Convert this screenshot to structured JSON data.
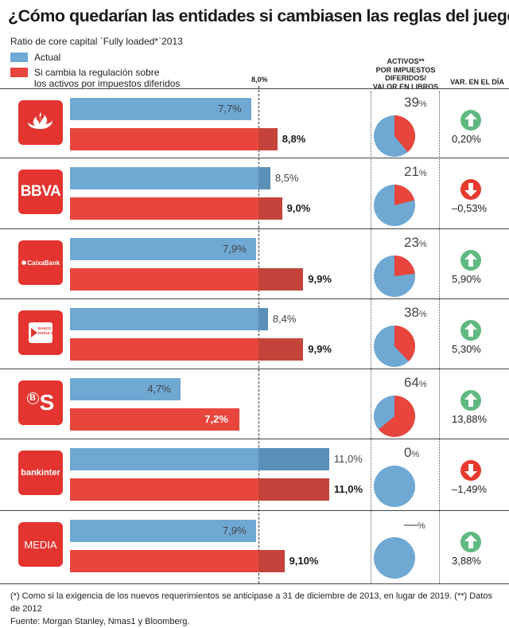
{
  "header": {
    "title": "¿Cómo quedarían las entidades si cambiasen las reglas del juego?",
    "subtitle": "Ratio de core capital `Fully loaded*`2013",
    "legend_actual": "Actual",
    "legend_new_line1": "Si cambia la regulación sobre",
    "legend_new_line2": "los activos por impuestos diferidos",
    "col_assets_line1": "ACTIVOS**",
    "col_assets_line2": "POR IMPUESTOS",
    "col_assets_line3": "DIFERIDOS/",
    "col_assets_line4": "VALOR EN LIBROS",
    "col_var": "VAR. EN EL DÍA",
    "ref_label": "8,0%"
  },
  "colors": {
    "actual": "#6fa8d3",
    "new": "#e8453c",
    "down": "#e63a2e",
    "up": "#5fb980"
  },
  "chart_data": {
    "type": "bar",
    "title": "¿Cómo quedarían las entidades si cambiasen las reglas del juego?",
    "subtitle": "Ratio de core capital `Fully loaded*`2013",
    "reference_line": 8.0,
    "categories": [
      "Santander",
      "BBVA",
      "CaixaBank",
      "Banco Popular",
      "Sabadell",
      "Bankinter",
      "MEDIA"
    ],
    "series": [
      {
        "name": "Actual",
        "values": [
          7.7,
          8.5,
          7.9,
          8.4,
          4.7,
          11.0,
          7.9
        ],
        "labels": [
          "7,7%",
          "8,5%",
          "7,9%",
          "8,4%",
          "4,7%",
          "11,0%",
          "7,9%"
        ]
      },
      {
        "name": "Si cambia la regulación sobre los activos por impuestos diferidos",
        "values": [
          8.8,
          9.0,
          9.9,
          9.9,
          7.2,
          11.0,
          9.1
        ],
        "labels": [
          "8,8%",
          "9,0%",
          "9,9%",
          "9,9%",
          "7,2%",
          "11,0%",
          "9,10%"
        ]
      }
    ],
    "deferred_tax_assets_pct": [
      39,
      21,
      23,
      38,
      64,
      0,
      null
    ],
    "deferred_tax_assets_labels": [
      "39",
      "21",
      "23",
      "38",
      "64",
      "0",
      "—"
    ],
    "day_change": [
      0.2,
      -0.53,
      5.9,
      5.3,
      13.88,
      -1.49,
      3.88
    ],
    "day_change_labels": [
      "0,20%",
      "–0,53%",
      "5,90%",
      "5,30%",
      "13,88%",
      "–1,49%",
      "3,88%"
    ]
  },
  "logos": {
    "bbva": "BBVA",
    "caixa": "CaixaBank",
    "popular_line1": "BANCO",
    "popular_line2": "POPULAR",
    "sabadell_b": "B",
    "sabadell_s": "S",
    "bankinter": "bankinter",
    "media": "MEDIA"
  },
  "footnote": {
    "line1": "(*) Como si la exigencia de los nuevos requerimientos se anticipase a 31 de diciembre de 2013, en lugar de 2019. (**) Datos de 2012",
    "line2": "Fuente: Morgan Stanley, Nmas1 y Bloomberg."
  }
}
